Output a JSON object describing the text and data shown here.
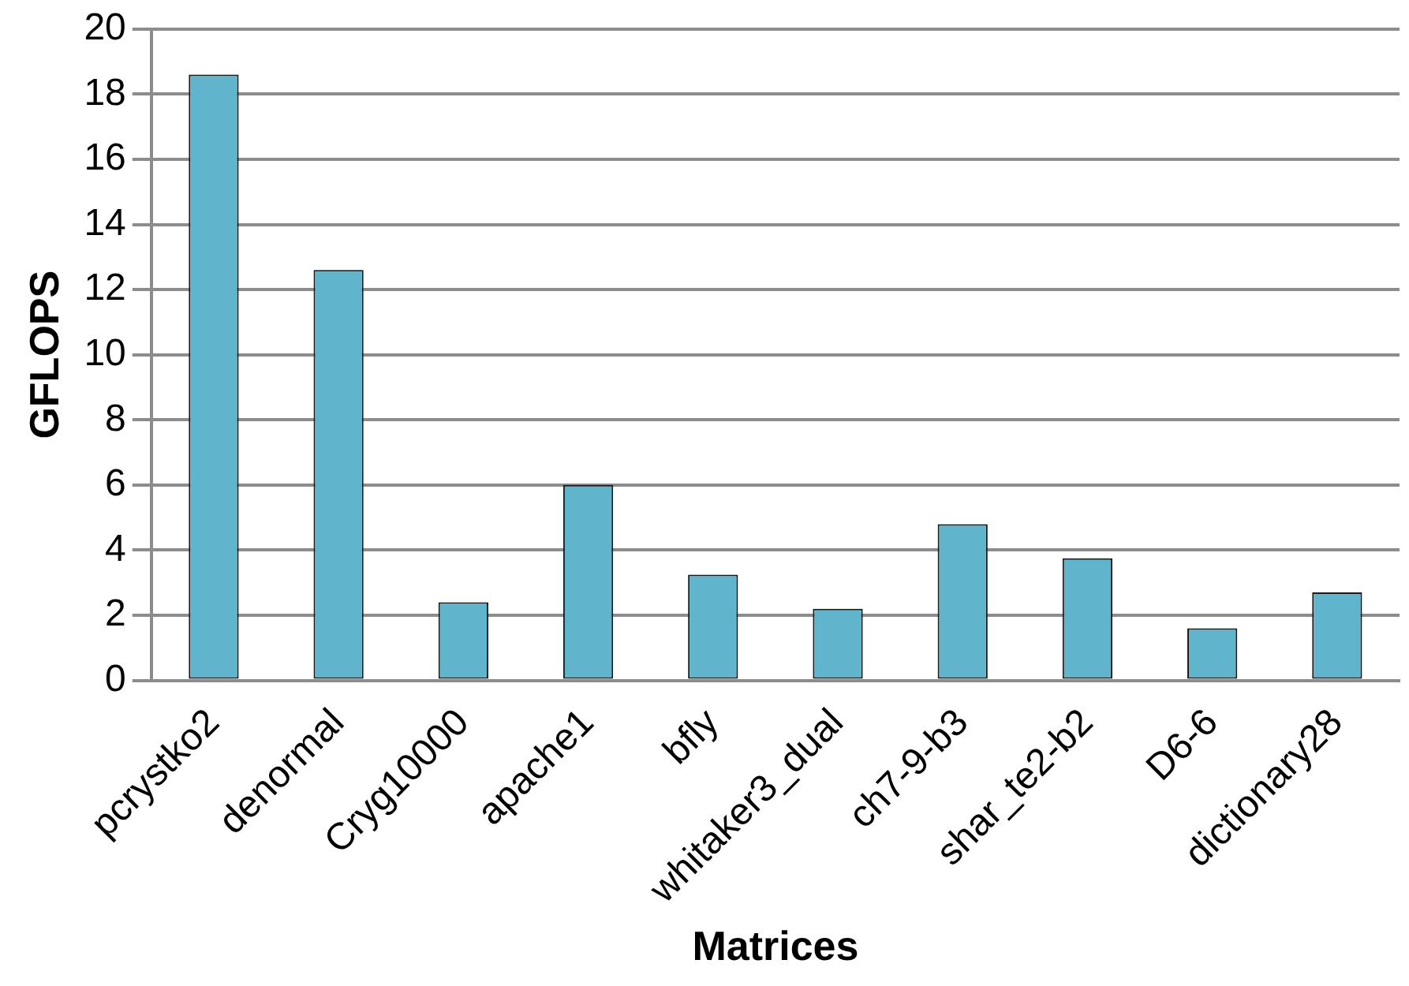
{
  "chart_data": {
    "type": "bar",
    "xlabel": "Matrices",
    "ylabel": "GFLOPS",
    "categories": [
      "pcrystko2",
      "denormal",
      "Cryg10000",
      "apache1",
      "bfly",
      "whitaker3_dual",
      "ch7-9-b3",
      "shar_te2-b2",
      "D6-6",
      "dictionary28"
    ],
    "values": [
      18.6,
      12.6,
      2.4,
      6.0,
      3.25,
      2.2,
      4.8,
      3.75,
      1.6,
      2.7
    ],
    "color": "#60b5cc",
    "ylim": [
      0,
      20
    ],
    "yticks": [
      0,
      2,
      4,
      6,
      8,
      10,
      12,
      14,
      16,
      18,
      20
    ],
    "grid": "y",
    "legend": false
  }
}
